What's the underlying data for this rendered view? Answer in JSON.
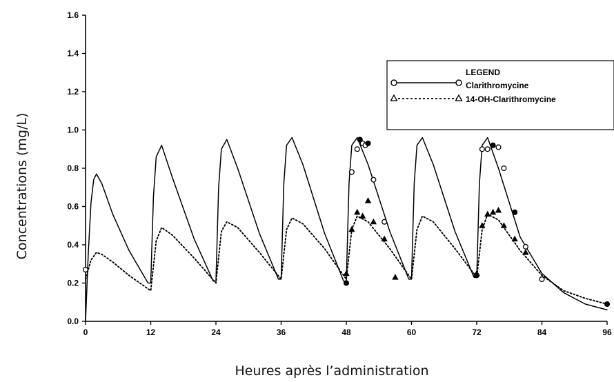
{
  "chart_data": {
    "type": "line",
    "title": "",
    "xlabel": "Heures après l’administration",
    "ylabel": "Concentrations (mg/L)",
    "xlim": [
      0,
      96
    ],
    "ylim": [
      0,
      1.6
    ],
    "x_ticks": [
      "0",
      "12",
      "24",
      "36",
      "48",
      "60",
      "72",
      "84",
      "96"
    ],
    "y_ticks": [
      "0.0",
      "0.2",
      "0.4",
      "0.6",
      "0.8",
      "1.0",
      "1.2",
      "1.4",
      "1.6"
    ],
    "grid": false,
    "legend": {
      "title": "LEGEND",
      "placement": "top-right",
      "entries": [
        "Clarithromycine",
        "14-OH-Clarithromycine"
      ]
    },
    "series": [
      {
        "name": "Clarithromycine",
        "style": "solid",
        "x": [
          0,
          0.5,
          1,
          1.5,
          2,
          3,
          5,
          8,
          11.5,
          12,
          12.5,
          13,
          14,
          16,
          20,
          23.5,
          24,
          24.5,
          25,
          26,
          28,
          32,
          35.5,
          36,
          36.5,
          37,
          38,
          40,
          44,
          47.5,
          48,
          48.5,
          49,
          50,
          52,
          56,
          59.5,
          60,
          60.5,
          61,
          62,
          64,
          68,
          71.5,
          72,
          72.5,
          73,
          74,
          76,
          80,
          84,
          88,
          92,
          96
        ],
        "values": [
          0.0,
          0.35,
          0.62,
          0.74,
          0.77,
          0.72,
          0.56,
          0.37,
          0.2,
          0.2,
          0.65,
          0.86,
          0.92,
          0.75,
          0.43,
          0.21,
          0.21,
          0.7,
          0.9,
          0.95,
          0.8,
          0.46,
          0.22,
          0.22,
          0.72,
          0.92,
          0.96,
          0.82,
          0.46,
          0.21,
          0.21,
          0.72,
          0.92,
          0.96,
          0.82,
          0.47,
          0.22,
          0.22,
          0.72,
          0.92,
          0.96,
          0.82,
          0.47,
          0.23,
          0.23,
          0.72,
          0.92,
          0.96,
          0.8,
          0.44,
          0.25,
          0.15,
          0.09,
          0.06
        ]
      },
      {
        "name": "14-OH-Clarithromycine",
        "style": "dotted",
        "x": [
          0,
          1,
          2,
          3,
          5,
          8,
          12,
          13,
          14,
          16,
          20,
          24,
          25,
          26,
          28,
          32,
          36,
          37,
          38,
          40,
          44,
          48,
          49,
          50,
          52,
          56,
          60,
          61,
          62,
          64,
          68,
          72,
          73,
          74,
          76,
          80,
          84,
          88,
          92,
          96
        ],
        "values": [
          0.22,
          0.32,
          0.36,
          0.35,
          0.31,
          0.24,
          0.16,
          0.42,
          0.49,
          0.45,
          0.33,
          0.2,
          0.47,
          0.52,
          0.49,
          0.36,
          0.22,
          0.48,
          0.54,
          0.51,
          0.38,
          0.22,
          0.48,
          0.55,
          0.52,
          0.38,
          0.22,
          0.48,
          0.55,
          0.52,
          0.38,
          0.23,
          0.48,
          0.56,
          0.53,
          0.37,
          0.24,
          0.16,
          0.12,
          0.09
        ]
      }
    ],
    "observed_points": {
      "Clarithromycine": {
        "x": [
          0,
          48,
          49,
          50,
          50.5,
          51,
          51.5,
          52,
          53,
          55,
          72,
          73,
          74,
          75,
          76,
          77,
          79,
          81,
          84,
          96
        ],
        "values": [
          0.27,
          0.2,
          0.78,
          0.9,
          0.95,
          0.93,
          0.92,
          0.93,
          0.74,
          0.52,
          0.24,
          0.9,
          0.9,
          0.92,
          0.91,
          0.8,
          0.57,
          0.39,
          0.22,
          0.09
        ]
      },
      "14-OH-Clarithromycine": {
        "x": [
          48,
          49,
          50,
          51,
          52,
          53,
          55,
          57,
          72,
          73,
          74,
          75,
          76,
          77,
          79,
          81
        ],
        "values": [
          0.25,
          0.48,
          0.57,
          0.55,
          0.63,
          0.52,
          0.43,
          0.23,
          0.25,
          0.5,
          0.56,
          0.57,
          0.58,
          0.5,
          0.43,
          0.36
        ]
      }
    }
  }
}
